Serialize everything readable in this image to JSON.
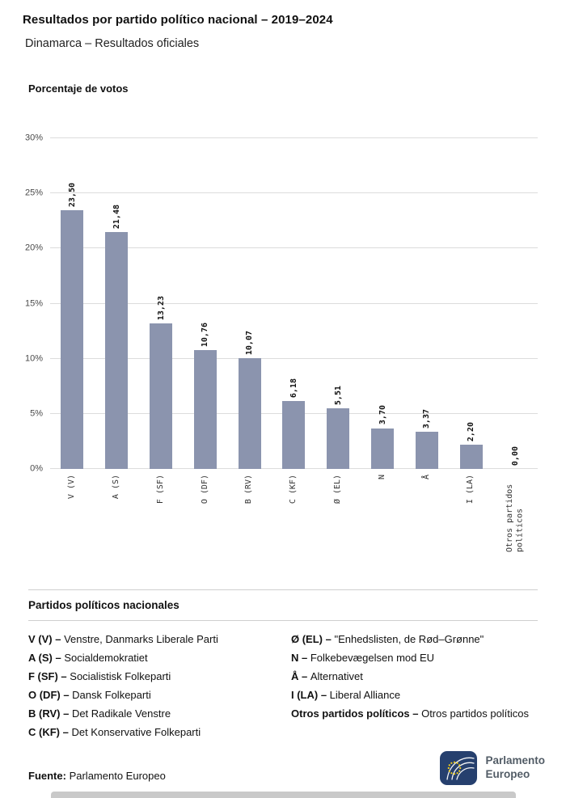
{
  "header": {
    "title": "Resultados por partido político nacional – 2019–2024",
    "subtitle": "Dinamarca – Resultados oficiales"
  },
  "chart_data": {
    "type": "bar",
    "title": "Porcentaje de votos",
    "categories": [
      "V (V)",
      "A (S)",
      "F (SF)",
      "O (DF)",
      "B (RV)",
      "C (KF)",
      "Ø (EL)",
      "N",
      "Å",
      "I (LA)",
      "Otros partidos políticos"
    ],
    "values": [
      23.5,
      21.48,
      13.23,
      10.76,
      10.07,
      6.18,
      5.51,
      3.7,
      3.37,
      2.2,
      0.0
    ],
    "value_labels": [
      "23,50",
      "21,48",
      "13,23",
      "10,76",
      "10,07",
      "6,18",
      "5,51",
      "3,70",
      "3,37",
      "2,20",
      "0,00"
    ],
    "xlabel": "",
    "ylabel": "Porcentaje de votos",
    "ylim": [
      0,
      30
    ],
    "ytick_step": 5,
    "ytick_suffix": "%",
    "grid": true,
    "legend_position": "none",
    "bar_color": "#8b94ae"
  },
  "legend": {
    "heading": "Partidos políticos nacionales",
    "separator": "–",
    "columns": [
      [
        {
          "abbr": "V (V)",
          "name": "Venstre, Danmarks Liberale Parti"
        },
        {
          "abbr": "A (S)",
          "name": "Socialdemokratiet"
        },
        {
          "abbr": "F (SF)",
          "name": "Socialistisk Folkeparti"
        },
        {
          "abbr": "O (DF)",
          "name": "Dansk Folkeparti"
        },
        {
          "abbr": "B (RV)",
          "name": "Det Radikale Venstre"
        },
        {
          "abbr": "C (KF)",
          "name": "Det Konservative Folkeparti"
        }
      ],
      [
        {
          "abbr": "Ø (EL)",
          "name": "\"Enhedslisten, de Rød–Grønne\""
        },
        {
          "abbr": "N",
          "name": "Folkebevægelsen mod EU"
        },
        {
          "abbr": "Å",
          "name": "Alternativet"
        },
        {
          "abbr": "I (LA)",
          "name": "Liberal Alliance"
        },
        {
          "abbr": "Otros partidos políticos",
          "name": "Otros partidos políticos"
        }
      ]
    ]
  },
  "footer": {
    "source_label": "Fuente:",
    "source_value": "Parlamento Europeo"
  },
  "logo": {
    "line1": "Parlamento",
    "line2": "Europeo",
    "mark_color": "#26406e",
    "star_color": "#f7d117"
  }
}
